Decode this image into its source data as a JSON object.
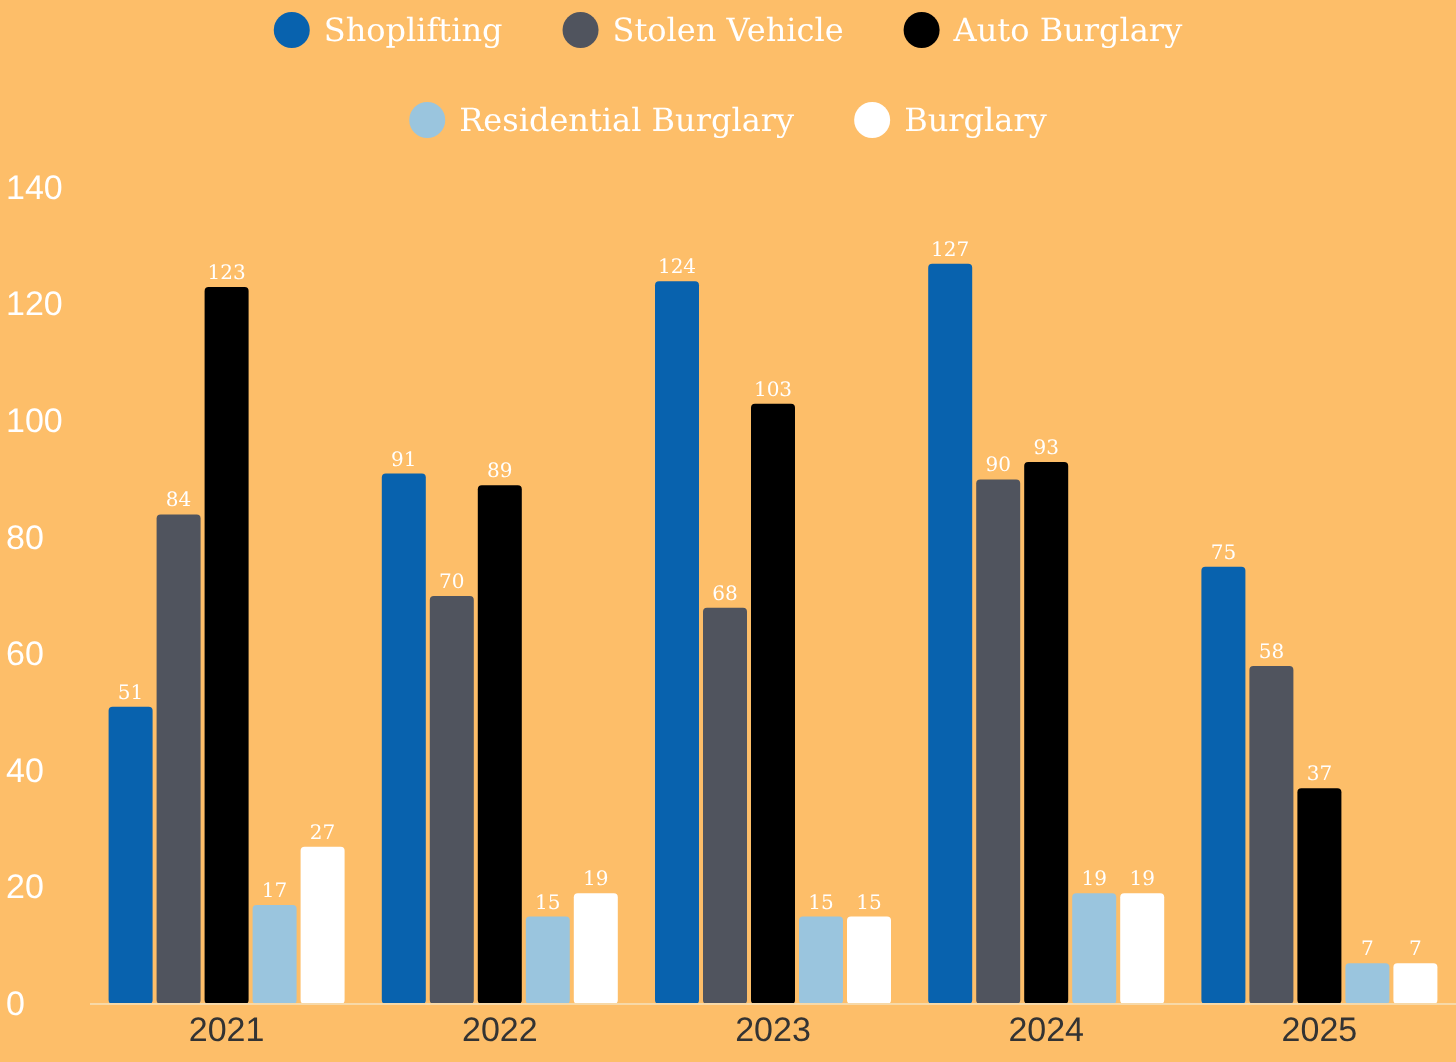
{
  "chart_data": {
    "type": "bar",
    "categories": [
      "2021",
      "2022",
      "2023",
      "2024",
      "2025"
    ],
    "series": [
      {
        "name": "Shoplifting",
        "color": "#0862ae",
        "values": [
          51,
          91,
          124,
          127,
          75
        ]
      },
      {
        "name": "Stolen Vehicle",
        "color": "#50545e",
        "values": [
          84,
          70,
          68,
          90,
          58
        ]
      },
      {
        "name": "Auto Burglary",
        "color": "#000000",
        "values": [
          123,
          89,
          103,
          93,
          37
        ]
      },
      {
        "name": "Residential Burglary",
        "color": "#9ac5de",
        "values": [
          17,
          15,
          15,
          19,
          7
        ]
      },
      {
        "name": "Burglary",
        "color": "#ffffff",
        "values": [
          27,
          19,
          15,
          19,
          7
        ]
      }
    ],
    "ylim": [
      0,
      140
    ],
    "yticks": [
      0,
      20,
      40,
      60,
      80,
      100,
      120,
      140
    ],
    "grid": false,
    "legend": "top",
    "data_labels": true
  }
}
